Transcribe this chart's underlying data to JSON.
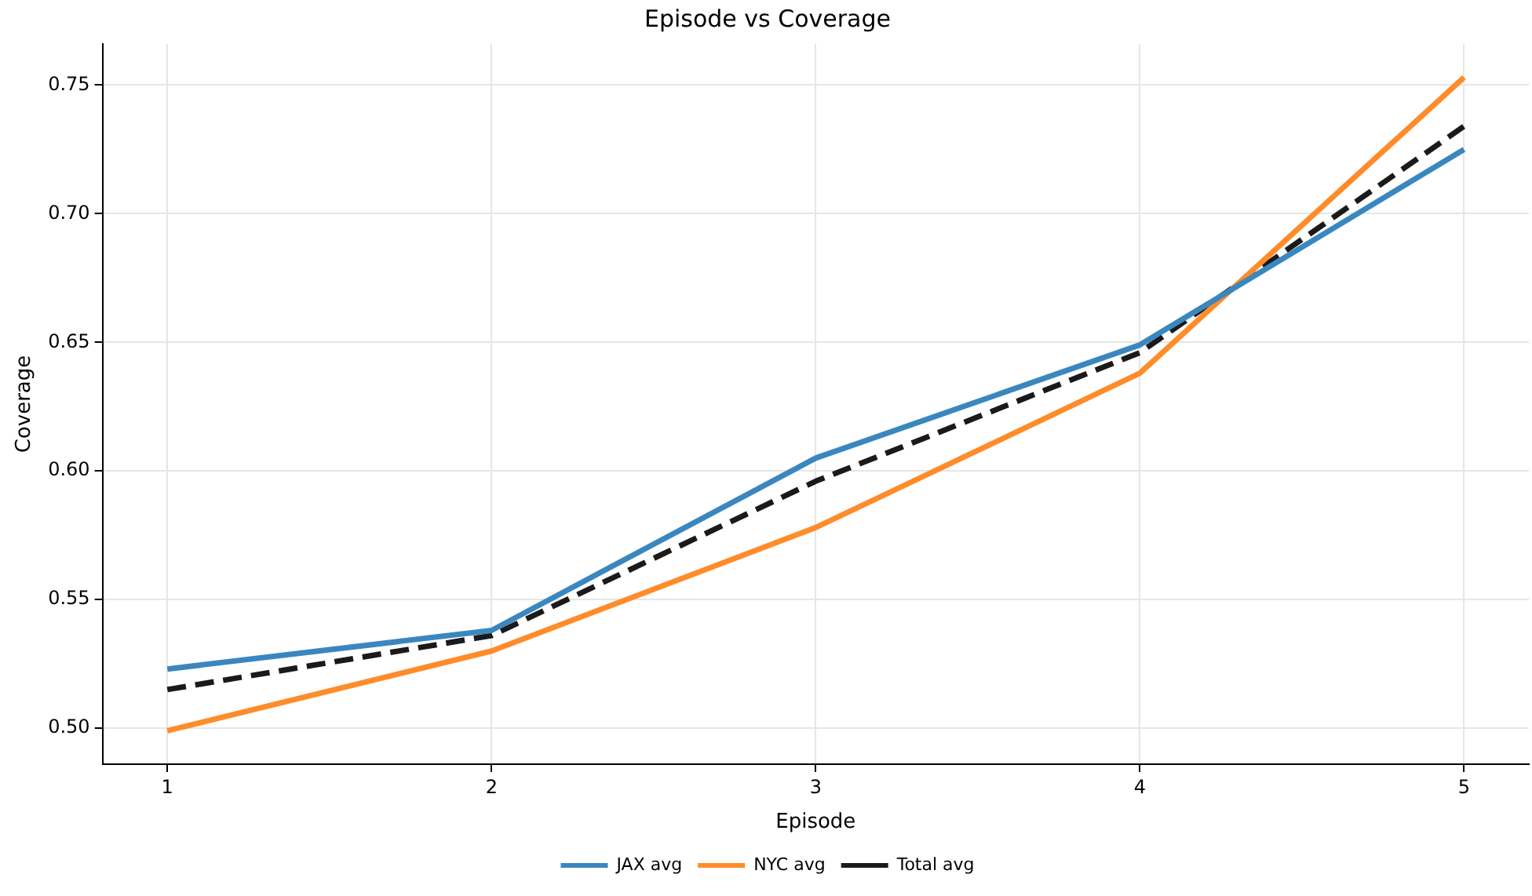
{
  "chart_data": {
    "type": "line",
    "title": "Episode vs Coverage",
    "xlabel": "Episode",
    "ylabel": "Coverage",
    "x": [
      1,
      2,
      3,
      4,
      5
    ],
    "xlim": [
      0.8,
      5.2
    ],
    "xticks": [
      1,
      2,
      3,
      4,
      5
    ],
    "ylim": [
      0.486,
      0.766
    ],
    "yticks": [
      {
        "value": 0.5,
        "label": "0.50"
      },
      {
        "value": 0.55,
        "label": "0.55"
      },
      {
        "value": 0.6,
        "label": "0.60"
      },
      {
        "value": 0.65,
        "label": "0.65"
      },
      {
        "value": 0.7,
        "label": "0.70"
      },
      {
        "value": 0.75,
        "label": "0.75"
      }
    ],
    "grid": true,
    "legend": "bottom",
    "marker": "none",
    "series": [
      {
        "name": "JAX avg",
        "color": "#3a87c0",
        "line_style": "solid",
        "values": [
          0.523,
          0.538,
          0.605,
          0.649,
          0.725
        ]
      },
      {
        "name": "NYC avg",
        "color": "#ff8c2a",
        "line_style": "solid",
        "values": [
          0.499,
          0.53,
          0.578,
          0.638,
          0.753
        ]
      },
      {
        "name": "Total avg",
        "color": "#1a1a1a",
        "line_style": "dashed",
        "values": [
          0.515,
          0.536,
          0.596,
          0.646,
          0.734
        ]
      }
    ]
  }
}
